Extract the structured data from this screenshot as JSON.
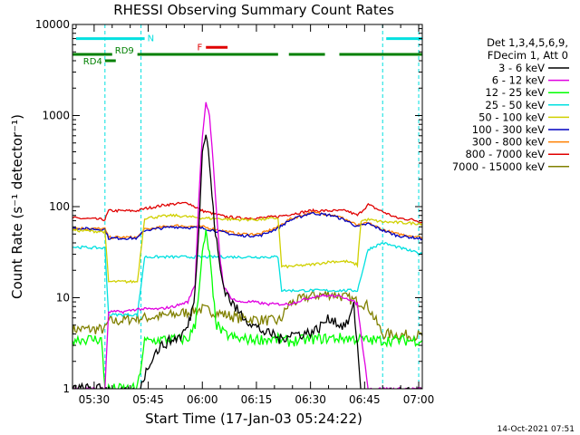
{
  "chart_data": {
    "type": "line",
    "title": "RHESSI Observing Summary Count Rates",
    "xlabel": "Start Time (17-Jan-03 05:24:22)",
    "ylabel": "Count Rate (s⁻¹ detector⁻¹)",
    "yscale": "log",
    "ylim": [
      1,
      10000
    ],
    "xlim_minutes": [
      -6,
      91
    ],
    "x_tick_labels": [
      "05:30",
      "05:45",
      "06:00",
      "06:15",
      "06:30",
      "06:45",
      "07:00"
    ],
    "x_tick_minutes": [
      0,
      15,
      30,
      45,
      60,
      75,
      90
    ],
    "y_tick_labels": [
      "1",
      "10",
      "100",
      "1000",
      "10000"
    ],
    "y_tick_values": [
      1,
      10,
      100,
      1000,
      10000
    ],
    "grid": false,
    "legend_position": "right",
    "legend_header": [
      "Det 1,3,4,5,6,9,",
      "FDecim 1, Att 0"
    ],
    "timestamp": "14-Oct-2021 07:51",
    "flags": [
      {
        "label": "N",
        "color": "#00e0e0",
        "segments": [
          [
            -5,
            14
          ],
          [
            81,
            91
          ]
        ],
        "level": 7000
      },
      {
        "label": "F",
        "color": "#e00000",
        "segments": [
          [
            31,
            37
          ]
        ],
        "level": 5600
      },
      {
        "label": "RD9",
        "color": "#008000",
        "segments": [
          [
            -6,
            5
          ],
          [
            12,
            51
          ],
          [
            54,
            64
          ],
          [
            68,
            91
          ]
        ],
        "level": 4700
      },
      {
        "label": "RD4",
        "color": "#008000",
        "segments": [
          [
            3,
            6
          ]
        ],
        "level": 4000
      }
    ],
    "saa_lines_minutes": [
      3,
      13,
      80,
      90
    ],
    "series": [
      {
        "name": "3 - 6 keV",
        "color": "#000000",
        "x": [
          -6,
          3,
          4,
          6,
          8,
          12,
          14,
          16,
          18,
          20,
          22,
          24,
          26,
          27,
          28,
          29,
          30,
          31,
          32,
          33,
          34,
          35,
          36,
          38,
          40,
          42,
          44,
          46,
          48,
          50,
          51,
          52,
          54,
          56,
          58,
          60,
          62,
          64,
          66,
          68,
          70,
          72,
          73,
          74,
          76,
          80,
          91
        ],
        "y": [
          1,
          1,
          1,
          0.9,
          0.9,
          0.9,
          1.4,
          2.2,
          2.8,
          3.2,
          3.5,
          3.8,
          4.8,
          7,
          12,
          60,
          400,
          650,
          300,
          90,
          40,
          20,
          13,
          9,
          7,
          6,
          5,
          4.5,
          4,
          4,
          3.5,
          3.5,
          4,
          4,
          4,
          4.2,
          4.5,
          5.5,
          6,
          5,
          5,
          8,
          3,
          0.9,
          0.9,
          0.9,
          0.9
        ]
      },
      {
        "name": "6 - 12 keV",
        "color": "#e000e0",
        "x": [
          -6,
          3,
          4,
          6,
          8,
          12,
          14,
          18,
          22,
          26,
          28,
          29,
          30,
          31,
          32,
          33,
          34,
          35,
          36,
          38,
          40,
          44,
          48,
          51,
          54,
          58,
          62,
          66,
          70,
          73,
          74,
          76,
          80,
          91
        ],
        "y": [
          1,
          1,
          7,
          7,
          7,
          7.5,
          7.5,
          7.5,
          8,
          9,
          14,
          120,
          600,
          1400,
          1000,
          300,
          80,
          25,
          13,
          10,
          9,
          9,
          8.5,
          8.5,
          8.5,
          9.5,
          10.5,
          10.5,
          10,
          8.5,
          4,
          1,
          1,
          1
        ]
      },
      {
        "name": "12 - 25 keV",
        "color": "#00ff00",
        "x": [
          -6,
          1,
          2,
          3,
          4,
          12,
          14,
          20,
          26,
          28,
          30,
          31,
          32,
          33,
          34,
          36,
          40,
          46,
          51,
          54,
          60,
          66,
          70,
          73,
          74,
          76,
          80,
          91
        ],
        "y": [
          3.5,
          3.5,
          3.5,
          1,
          1,
          1,
          3.3,
          3.5,
          3.5,
          5,
          30,
          50,
          30,
          10,
          5,
          4,
          3.5,
          3.5,
          3.5,
          3.3,
          3.5,
          3.6,
          3.6,
          3.5,
          3.5,
          3.4,
          3.4,
          3.4
        ]
      },
      {
        "name": "25 - 50 keV",
        "color": "#00e0e0",
        "x": [
          -6,
          3,
          4,
          6,
          12,
          14,
          22,
          30,
          40,
          50,
          51,
          52,
          54,
          60,
          66,
          70,
          73,
          76,
          80,
          91
        ],
        "y": [
          36,
          35,
          6.5,
          6.5,
          6.5,
          28,
          28,
          28,
          28,
          28,
          28,
          12,
          12,
          12,
          12,
          12,
          12,
          34,
          40,
          30
        ]
      },
      {
        "name": "50 - 100 keV",
        "color": "#d0d000",
        "x": [
          -6,
          3,
          4,
          6,
          12,
          14,
          22,
          30,
          40,
          46,
          51,
          52,
          54,
          60,
          66,
          70,
          73,
          74,
          76,
          80,
          91
        ],
        "y": [
          55,
          53,
          15,
          15,
          15,
          75,
          80,
          75,
          72,
          72,
          75,
          22,
          22,
          23,
          25,
          25,
          23,
          70,
          72,
          68,
          65
        ]
      },
      {
        "name": "100 - 300 keV",
        "color": "#0000c0",
        "x": [
          -6,
          3,
          4,
          6,
          12,
          14,
          22,
          30,
          36,
          40,
          46,
          51,
          54,
          60,
          66,
          70,
          73,
          76,
          80,
          84,
          88,
          91
        ],
        "y": [
          58,
          56,
          45,
          45,
          45,
          55,
          60,
          58,
          52,
          48,
          48,
          58,
          70,
          85,
          80,
          70,
          60,
          65,
          55,
          48,
          46,
          44
        ]
      },
      {
        "name": "300 - 800 keV",
        "color": "#ff7f00",
        "x": [
          -6,
          3,
          4,
          6,
          12,
          14,
          22,
          30,
          36,
          40,
          46,
          51,
          54,
          60,
          66,
          70,
          73,
          76,
          80,
          84,
          88,
          91
        ],
        "y": [
          58,
          57,
          46,
          46,
          46,
          56,
          62,
          60,
          54,
          50,
          50,
          60,
          72,
          86,
          82,
          72,
          62,
          66,
          56,
          50,
          48,
          46
        ]
      },
      {
        "name": "800 - 7000 keV",
        "color": "#e00000",
        "x": [
          -6,
          3,
          4,
          6,
          12,
          14,
          20,
          26,
          30,
          36,
          40,
          46,
          51,
          54,
          60,
          66,
          70,
          73,
          76,
          80,
          84,
          88,
          91
        ],
        "y": [
          75,
          72,
          90,
          90,
          90,
          95,
          105,
          110,
          90,
          78,
          75,
          75,
          78,
          82,
          90,
          90,
          90,
          80,
          105,
          88,
          75,
          72,
          68
        ]
      },
      {
        "name": "7000 - 15000 keV",
        "color": "#808000",
        "x": [
          -6,
          3,
          4,
          6,
          12,
          14,
          22,
          30,
          40,
          51,
          52,
          54,
          60,
          66,
          70,
          73,
          74,
          76,
          80,
          91
        ],
        "y": [
          4.5,
          4.5,
          5.5,
          5.5,
          6,
          6,
          6.5,
          7.5,
          6,
          5.5,
          6,
          8.5,
          10.5,
          11,
          10,
          9,
          9,
          8,
          4,
          3.8
        ]
      }
    ]
  }
}
